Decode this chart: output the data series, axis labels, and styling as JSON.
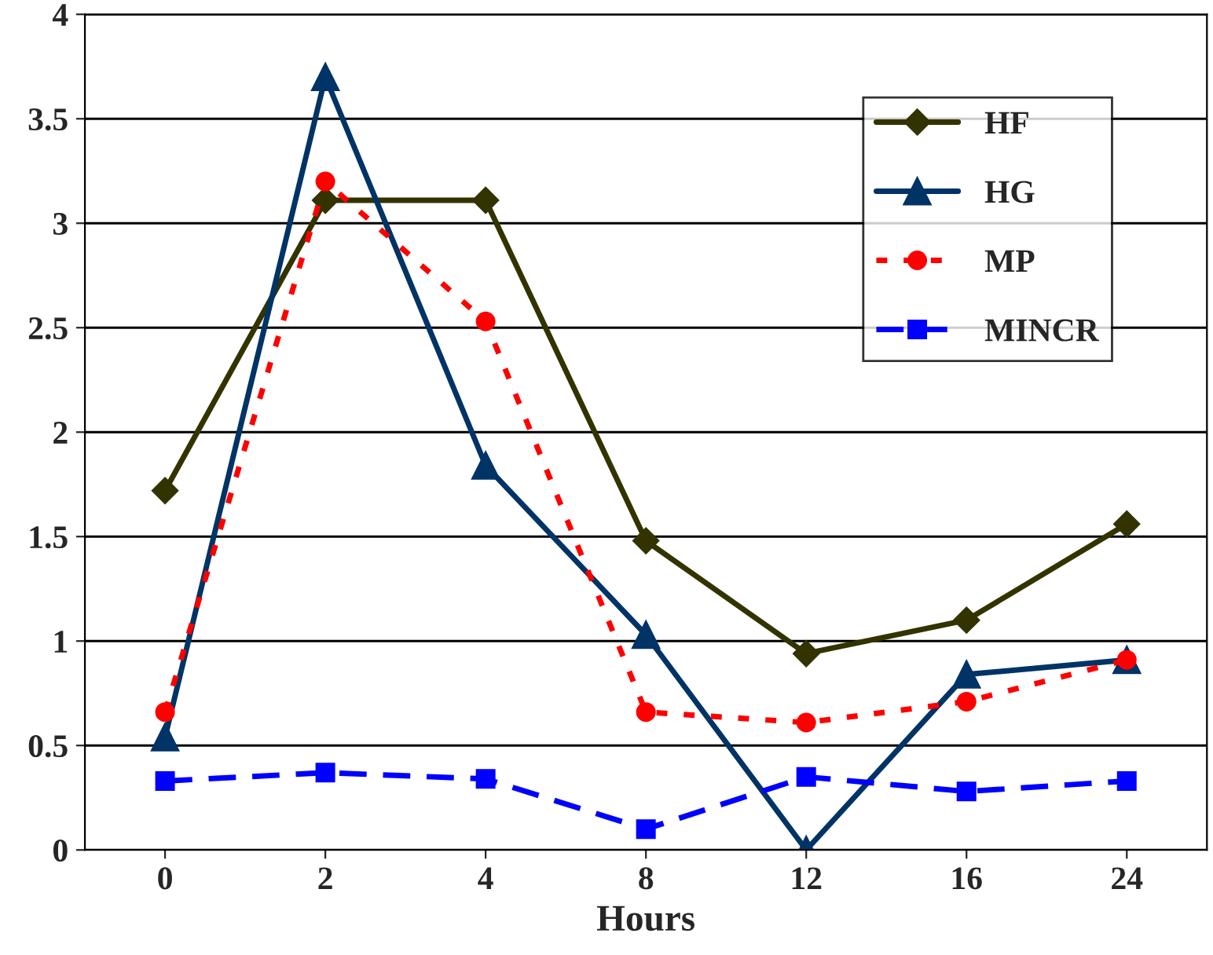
{
  "chart_data": {
    "type": "line",
    "xlabel": "Hours",
    "categories": [
      "0",
      "2",
      "4",
      "8",
      "12",
      "16",
      "24"
    ],
    "series": [
      {
        "name": "HF",
        "color": "#333300",
        "marker": "diamond",
        "line_style": "solid",
        "values": [
          1.72,
          3.11,
          3.11,
          1.48,
          0.94,
          1.1,
          1.56
        ]
      },
      {
        "name": "HG",
        "color": "#003366",
        "marker": "triangle",
        "line_style": "solid",
        "values": [
          0.54,
          3.7,
          1.84,
          1.03,
          0,
          0.84,
          0.91
        ]
      },
      {
        "name": "MP",
        "color": "#ff0000",
        "marker": "circle",
        "line_style": "dotted",
        "values": [
          0.66,
          3.2,
          2.53,
          0.66,
          0.61,
          0.71,
          0.91
        ]
      },
      {
        "name": "MINCR",
        "color": "#0000ff",
        "marker": "square",
        "line_style": "dashed",
        "values": [
          0.33,
          0.37,
          0.34,
          0.1,
          0.35,
          0.28,
          0.33
        ]
      }
    ],
    "ylim": [
      0,
      4
    ],
    "yticks": [
      0,
      0.5,
      1,
      1.5,
      2,
      2.5,
      3,
      3.5,
      4
    ],
    "grid": "y",
    "legend": "top right"
  }
}
